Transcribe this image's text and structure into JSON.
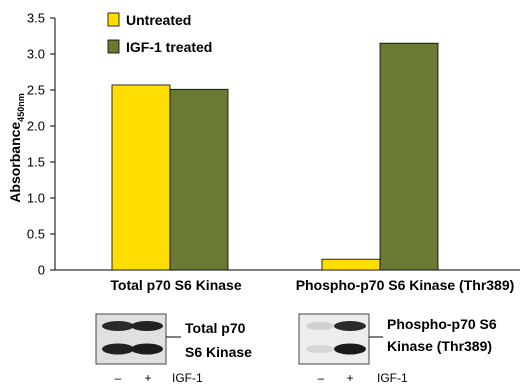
{
  "chart_data": {
    "type": "bar",
    "categories": [
      "Total p70 S6 Kinase",
      "Phospho-p70 S6 Kinase (Thr389)"
    ],
    "series": [
      {
        "name": "Untreated",
        "values": [
          2.57,
          0.15
        ],
        "color": "#FFDD00"
      },
      {
        "name": "IGF-1 treated",
        "values": [
          2.51,
          3.15
        ],
        "color": "#6B7A33"
      }
    ],
    "ylabel_main": "Absorbance",
    "ylabel_sub": "450nm",
    "ylim": [
      0,
      3.5
    ],
    "yticks": [
      "0",
      "0.5",
      "1.0",
      "1.5",
      "2.0",
      "2.5",
      "3.0",
      "3.5"
    ],
    "ytick_values": [
      0,
      0.5,
      1.0,
      1.5,
      2.0,
      2.5,
      3.0,
      3.5
    ],
    "legend_position": "top-left",
    "grid": false
  },
  "blots": [
    {
      "title_line1": "Total p70",
      "title_line2": "S6 Kinase",
      "lanes": [
        "–",
        "+"
      ],
      "treatment": "IGF-1"
    },
    {
      "title_line1": "Phospho-p70 S6",
      "title_line2": "Kinase (Thr389)",
      "lanes": [
        "–",
        "+"
      ],
      "treatment": "IGF-1"
    }
  ]
}
